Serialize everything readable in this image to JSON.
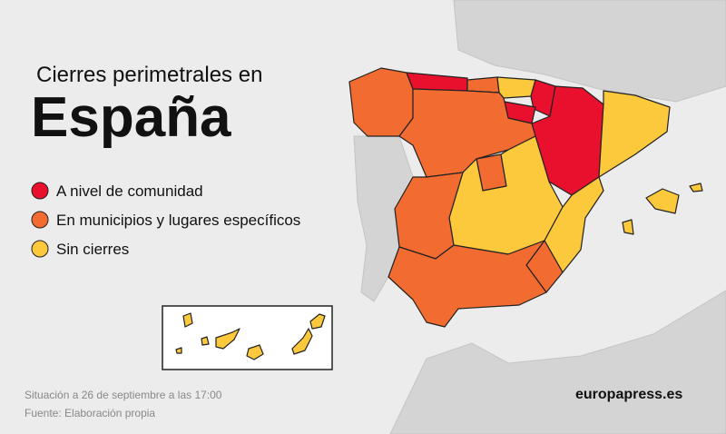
{
  "header": {
    "kicker": "Cierres perimetrales en",
    "title": "España"
  },
  "legend": [
    {
      "label": "A nivel de comunidad",
      "color": "#e8102d"
    },
    {
      "label": "En municipios y lugares específicos",
      "color": "#f26b30"
    },
    {
      "label": "Sin cierres",
      "color": "#fdc93c"
    }
  ],
  "footer": {
    "situation": "Situación a 26 de septiembre a las 17:00",
    "source": "Fuente: Elaboración propia"
  },
  "brand": "europapress.es"
}
